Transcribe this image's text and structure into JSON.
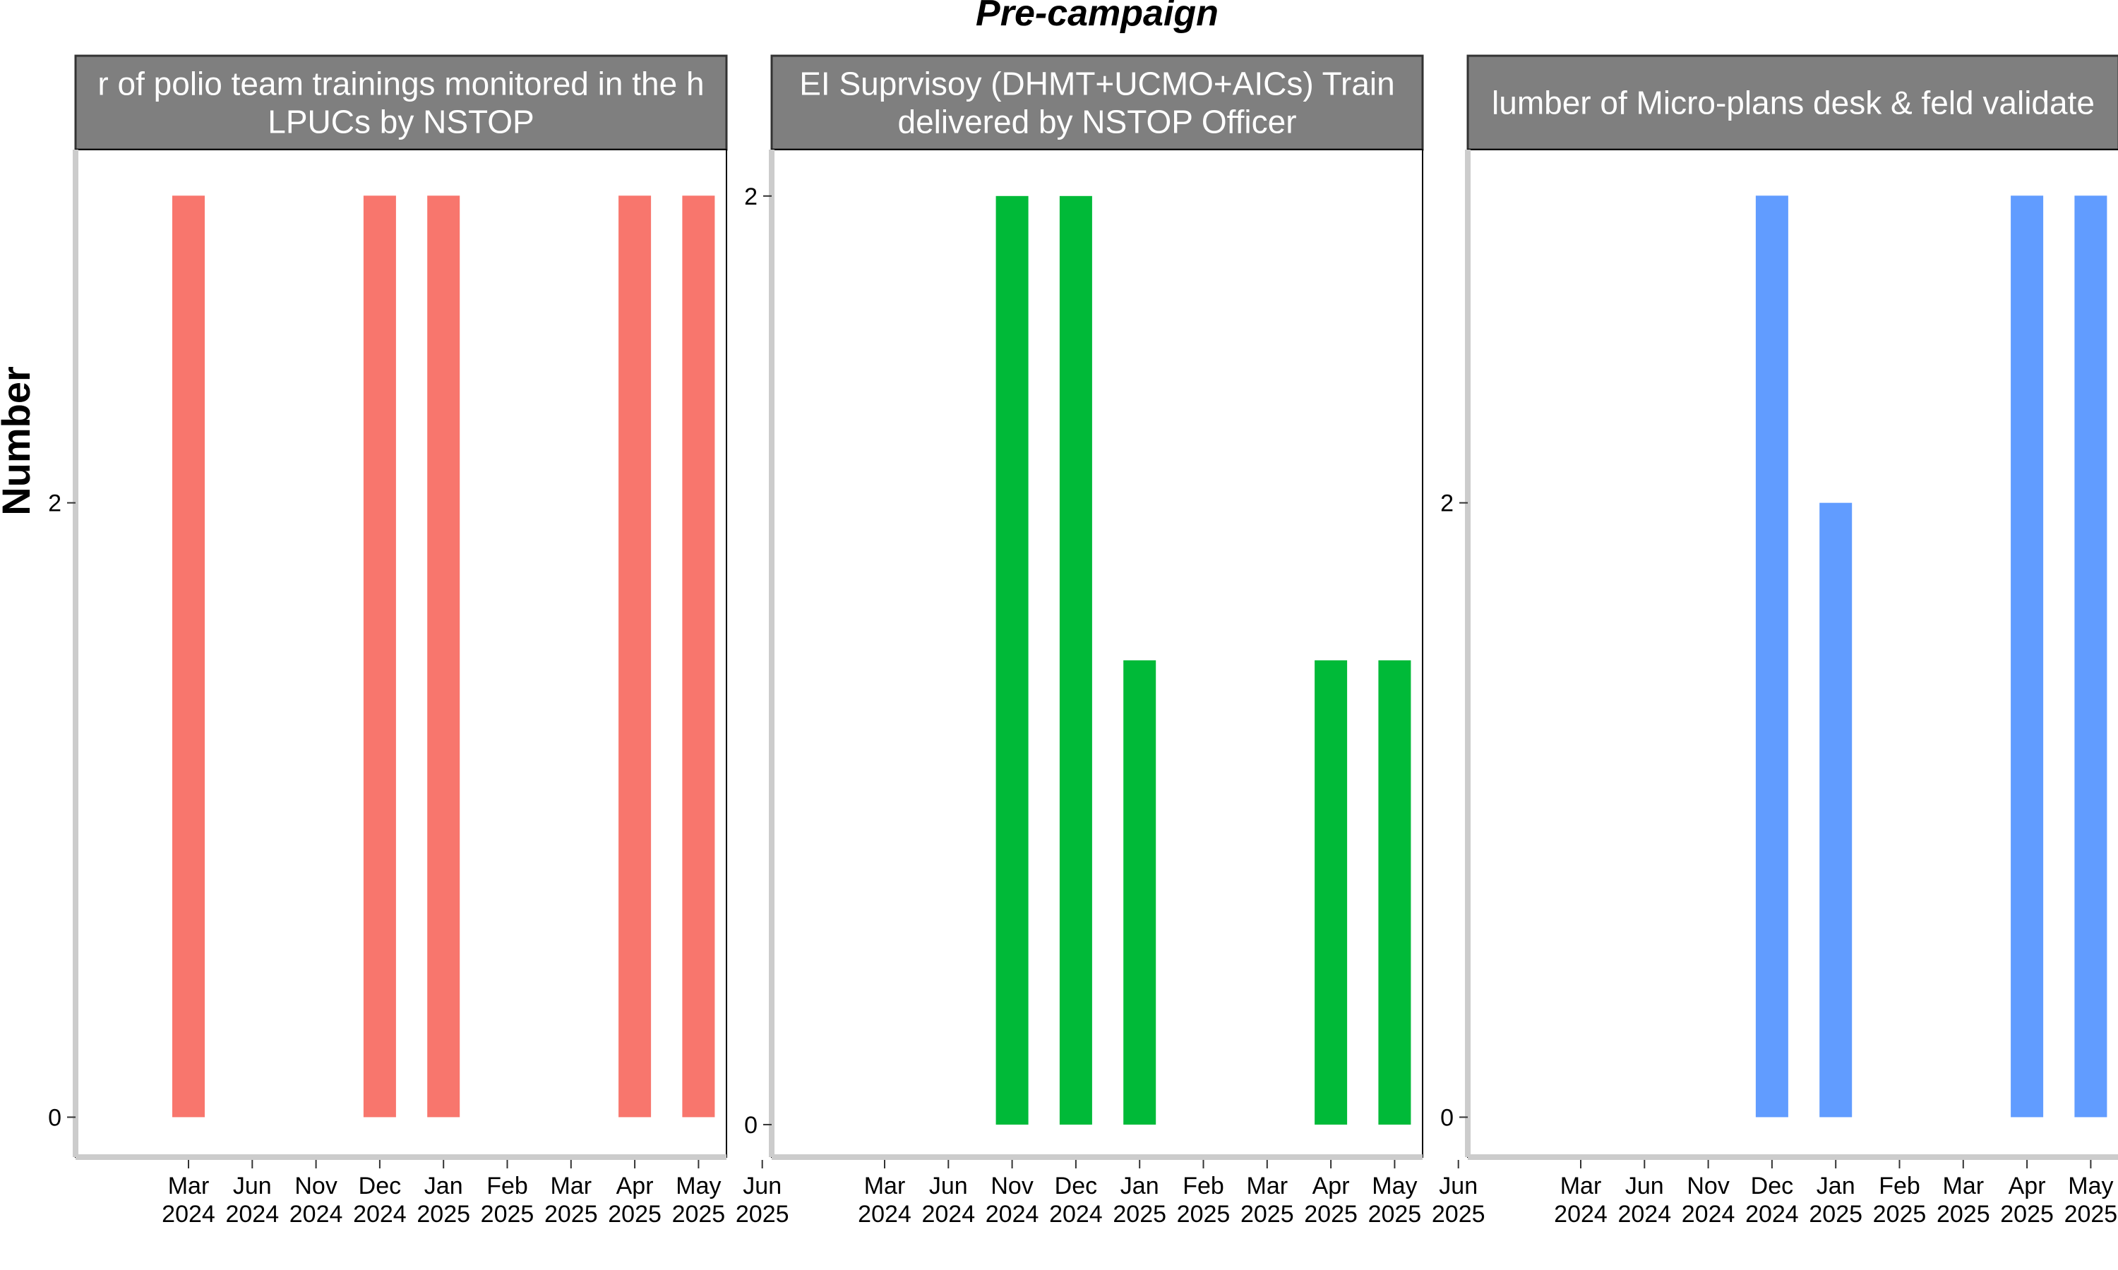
{
  "chart_data": {
    "type": "bar",
    "title": "Pre-campaign",
    "ylabel": "Number",
    "xlabel": "",
    "x_ticks": [
      {
        "month": "Mar",
        "year": "2024"
      },
      {
        "month": "Jun",
        "year": "2024"
      },
      {
        "month": "Nov",
        "year": "2024"
      },
      {
        "month": "Dec",
        "year": "2024"
      },
      {
        "month": "Jan",
        "year": "2025"
      },
      {
        "month": "Feb",
        "year": "2025"
      },
      {
        "month": "Mar",
        "year": "2025"
      },
      {
        "month": "Apr",
        "year": "2025"
      },
      {
        "month": "May",
        "year": "2025"
      },
      {
        "month": "Jun",
        "year": "2025"
      }
    ],
    "panels": [
      {
        "strip_lines": [
          "r of polio team trainings monitored in the h",
          "LPUCs by NSTOP"
        ],
        "color": "#F8766D",
        "y_ticks": [
          0,
          2
        ],
        "ylim": [
          -0.13,
          3.15
        ],
        "bars": [
          {
            "x": "Mar 2024",
            "value": 3
          },
          {
            "x": "Dec 2024",
            "value": 3
          },
          {
            "x": "Jan 2025",
            "value": 3
          },
          {
            "x": "Apr 2025",
            "value": 3
          },
          {
            "x": "May 2025",
            "value": 3
          }
        ]
      },
      {
        "strip_lines": [
          "EI Suprvisoy (DHMT+UCMO+AICs) Train",
          "delivered by NSTOP Officer"
        ],
        "color": "#00BA38",
        "y_ticks": [
          0,
          2
        ],
        "ylim": [
          -0.07,
          2.1
        ],
        "bars": [
          {
            "x": "Nov 2024",
            "value": 2
          },
          {
            "x": "Dec 2024",
            "value": 2
          },
          {
            "x": "Jan 2025",
            "value": 1
          },
          {
            "x": "Apr 2025",
            "value": 1
          },
          {
            "x": "May 2025",
            "value": 1
          }
        ]
      },
      {
        "strip_lines": [
          "lumber of Micro-plans desk & feld validate"
        ],
        "color": "#619CFF",
        "y_ticks": [
          0,
          2
        ],
        "ylim": [
          -0.13,
          3.15
        ],
        "bars": [
          {
            "x": "Dec 2024",
            "value": 3
          },
          {
            "x": "Jan 2025",
            "value": 2
          },
          {
            "x": "Apr 2025",
            "value": 3
          },
          {
            "x": "May 2025",
            "value": 3
          }
        ]
      }
    ],
    "grid": false,
    "legend": "none"
  }
}
